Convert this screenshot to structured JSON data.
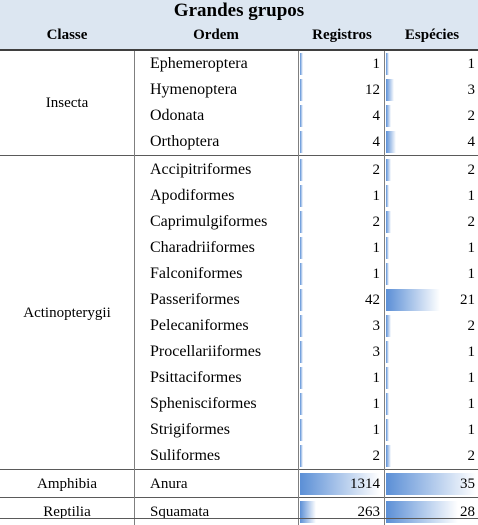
{
  "title": "Grandes grupos",
  "headers": {
    "classe": "Classe",
    "ordem": "Ordem",
    "registros": "Registros",
    "especies": "Espécies"
  },
  "colors": {
    "header_bg": "#dce6f1",
    "bar_dark": "#5b8fd6",
    "bar_light": "#ffffff"
  },
  "groups": [
    {
      "classe": "Insecta",
      "start": 0,
      "count": 4
    },
    {
      "classe": "Actinopterygii",
      "start": 4,
      "count": 12
    },
    {
      "classe": "Amphibia",
      "start": 16,
      "count": 1
    },
    {
      "classe": "Reptilia",
      "start": 17,
      "count": 1
    }
  ],
  "rows": [
    {
      "ordem": "Ephemeroptera",
      "registros": 1,
      "especies": 1
    },
    {
      "ordem": "Hymenoptera",
      "registros": 12,
      "especies": 3
    },
    {
      "ordem": "Odonata",
      "registros": 4,
      "especies": 2
    },
    {
      "ordem": "Orthoptera",
      "registros": 4,
      "especies": 4
    },
    {
      "ordem": "Accipitriformes",
      "registros": 2,
      "especies": 2
    },
    {
      "ordem": "Apodiformes",
      "registros": 1,
      "especies": 1
    },
    {
      "ordem": "Caprimulgiformes",
      "registros": 2,
      "especies": 2
    },
    {
      "ordem": "Charadriiformes",
      "registros": 1,
      "especies": 1
    },
    {
      "ordem": "Falconiformes",
      "registros": 1,
      "especies": 1
    },
    {
      "ordem": "Passeriformes",
      "registros": 42,
      "especies": 21
    },
    {
      "ordem": "Pelecaniformes",
      "registros": 3,
      "especies": 2
    },
    {
      "ordem": "Procellariiformes",
      "registros": 3,
      "especies": 1
    },
    {
      "ordem": "Psittaciformes",
      "registros": 1,
      "especies": 1
    },
    {
      "ordem": "Sphenisciformes",
      "registros": 1,
      "especies": 1
    },
    {
      "ordem": "Strigiformes",
      "registros": 1,
      "especies": 1
    },
    {
      "ordem": "Suliformes",
      "registros": 2,
      "especies": 2
    },
    {
      "ordem": "Anura",
      "registros": 1314,
      "especies": 35
    },
    {
      "ordem": "Squamata",
      "registros": 263,
      "especies": 28
    }
  ],
  "max": {
    "registros": 1314,
    "especies": 35
  }
}
